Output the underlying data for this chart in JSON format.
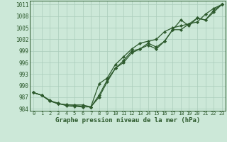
{
  "title": "Graphe pression niveau de la mer (hPa)",
  "background_color": "#cce8d8",
  "grid_color": "#aaccbb",
  "line_color": "#2d5a2d",
  "xlim": [
    -0.5,
    23.5
  ],
  "ylim": [
    983.5,
    1012
  ],
  "yticks": [
    984,
    987,
    990,
    993,
    996,
    999,
    1002,
    1005,
    1008,
    1011
  ],
  "xticks": [
    0,
    1,
    2,
    3,
    4,
    5,
    6,
    7,
    8,
    9,
    10,
    11,
    12,
    13,
    14,
    15,
    16,
    17,
    18,
    19,
    20,
    21,
    22,
    23
  ],
  "series1_x": [
    0,
    1,
    2,
    3,
    4,
    5,
    6,
    7,
    8,
    9,
    10,
    11,
    12,
    13,
    14,
    15,
    16,
    17,
    18,
    19,
    20,
    21,
    22,
    23
  ],
  "series1_y": [
    988.2,
    987.5,
    986.2,
    985.3,
    985.1,
    984.9,
    984.6,
    984.5,
    987.5,
    991.5,
    994.5,
    996.5,
    999.0,
    999.5,
    1001.0,
    1000.0,
    1001.5,
    1004.5,
    1004.5,
    1006.0,
    1006.5,
    1008.5,
    1010.0,
    1011.0
  ],
  "series2_x": [
    0,
    1,
    2,
    3,
    4,
    5,
    6,
    7,
    8,
    9,
    10,
    11,
    12,
    13,
    14,
    15,
    16,
    17,
    18,
    19,
    20,
    21,
    22,
    23
  ],
  "series2_y": [
    988.2,
    987.5,
    986.0,
    985.3,
    985.0,
    985.0,
    985.0,
    984.5,
    990.5,
    992.0,
    995.5,
    997.5,
    999.5,
    1001.0,
    1001.5,
    1002.0,
    1004.0,
    1005.0,
    1005.5,
    1006.0,
    1007.5,
    1007.0,
    1009.0,
    1011.0
  ],
  "series3_x": [
    0,
    1,
    2,
    3,
    4,
    5,
    6,
    7,
    8,
    9,
    10,
    11,
    12,
    13,
    14,
    15,
    16,
    17,
    18,
    19,
    20,
    21,
    22,
    23
  ],
  "series3_y": [
    988.2,
    987.5,
    986.0,
    985.5,
    984.8,
    984.6,
    984.5,
    984.5,
    987.0,
    991.0,
    994.5,
    996.0,
    998.5,
    999.5,
    1000.5,
    999.5,
    1001.5,
    1004.5,
    1007.0,
    1005.5,
    1007.5,
    1007.0,
    1009.5,
    1011.0
  ],
  "ylabel_fontsize": 5.5,
  "xlabel_fontsize": 6.5,
  "tick_fontsize": 5.0,
  "linewidth": 0.9,
  "markersize": 2.2
}
